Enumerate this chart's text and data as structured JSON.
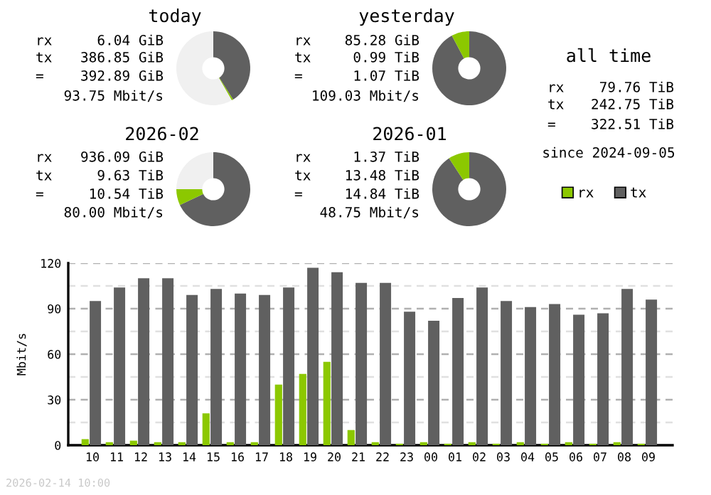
{
  "chart_data": [
    {
      "type": "donut",
      "title": "today",
      "categories": [
        null,
        null,
        null
      ],
      "values": [
        41.0,
        0.7,
        58.3
      ],
      "colors": [
        "#606060",
        "#8cc800",
        "#f0f0f0"
      ],
      "annotations": [
        "rx",
        "6.04 GiB",
        "tx",
        "386.85 GiB",
        "=",
        "392.89 GiB",
        "93.75 Mbit/s"
      ]
    },
    {
      "type": "donut",
      "title": "yesterday",
      "categories": [
        null,
        null
      ],
      "values": [
        92.2,
        7.8
      ],
      "colors": [
        "#606060",
        "#8cc800"
      ],
      "annotations": [
        "rx",
        "85.28 GiB",
        "tx",
        "0.99 TiB",
        "=",
        "1.07 TiB",
        "109.03 Mbit/s"
      ]
    },
    {
      "type": "donut",
      "title": "2026-02",
      "categories": [
        null,
        null,
        null
      ],
      "values": [
        68.0,
        7.0,
        25.0
      ],
      "colors": [
        "#606060",
        "#8cc800",
        "#f0f0f0"
      ],
      "annotations": [
        "rx",
        "936.09 GiB",
        "tx",
        "9.63 TiB",
        "=",
        "10.54 TiB",
        "80.00 Mbit/s"
      ]
    },
    {
      "type": "donut",
      "title": "2026-01",
      "categories": [
        null,
        null
      ],
      "values": [
        90.8,
        9.2
      ],
      "colors": [
        "#606060",
        "#8cc800"
      ],
      "annotations": [
        "rx",
        "1.37 TiB",
        "tx",
        "13.48 TiB",
        "=",
        "14.84 TiB",
        "48.75 Mbit/s"
      ]
    },
    {
      "type": "other",
      "title": "all time",
      "annotations": [
        "rx",
        "79.76 TiB",
        "tx",
        "242.75 TiB",
        "=",
        "322.51 TiB",
        "since 2024-09-05"
      ]
    },
    {
      "type": "bar",
      "ylabel": "Mbit/s",
      "categories": [
        "10",
        "11",
        "12",
        "13",
        "14",
        "15",
        "16",
        "17",
        "18",
        "19",
        "20",
        "21",
        "22",
        "23",
        "00",
        "01",
        "02",
        "03",
        "04",
        "05",
        "06",
        "07",
        "08",
        "09"
      ],
      "series": [
        {
          "name": "rx",
          "color": "#8cc800",
          "values": [
            4,
            2,
            3,
            2,
            2,
            21,
            2,
            2,
            40,
            47,
            55,
            10,
            2,
            1,
            2,
            1,
            2,
            1,
            2,
            1,
            2,
            1,
            2,
            1
          ]
        },
        {
          "name": "tx",
          "color": "#606060",
          "values": [
            95,
            104,
            110,
            110,
            99,
            103,
            100,
            99,
            104,
            117,
            114,
            107,
            107,
            88,
            82,
            97,
            104,
            95,
            91,
            93,
            86,
            87,
            103,
            96
          ]
        }
      ],
      "ylim": [
        0,
        120
      ],
      "yticks": [
        0,
        {
          "value": 15,
          "label": null
        },
        30,
        {
          "value": 45,
          "label": null
        },
        60,
        {
          "value": 75,
          "label": null
        },
        90,
        {
          "value": 105,
          "label": null
        },
        120
      ],
      "grid": "y",
      "legend": "top right",
      "annotations": [
        "2026-02-14 10:00"
      ]
    }
  ]
}
